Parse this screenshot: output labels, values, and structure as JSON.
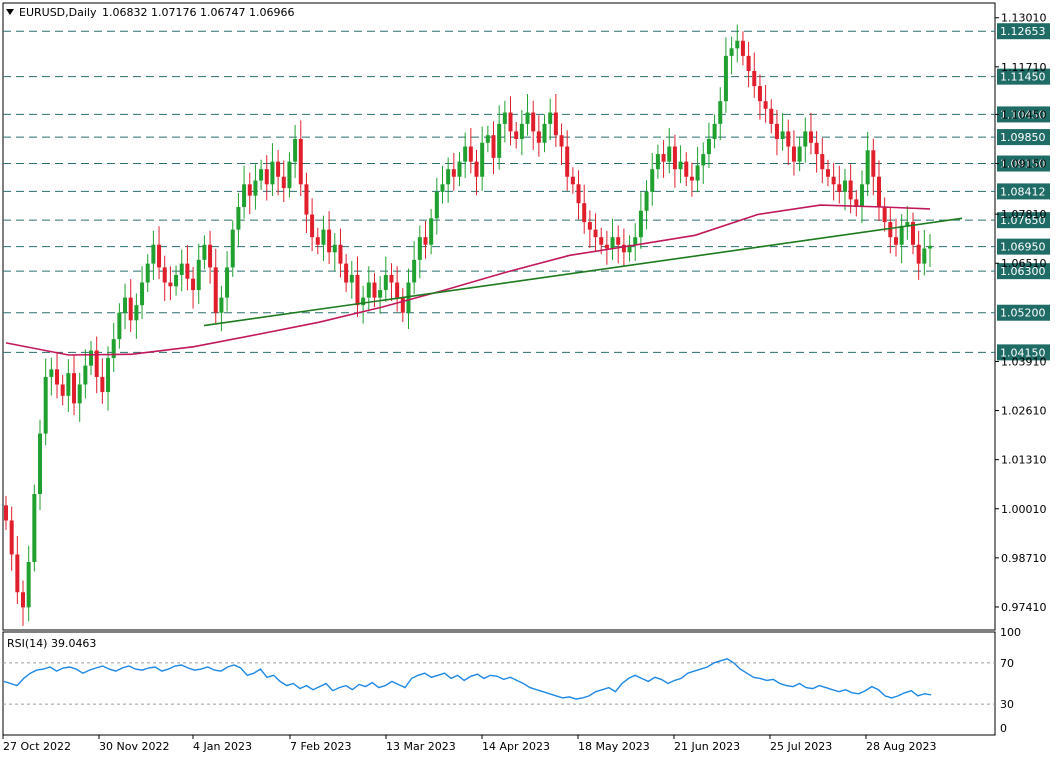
{
  "header": {
    "symbol": "EURUSD,Daily",
    "ohlc": "1.06832 1.07176 1.06747 1.06966"
  },
  "rsi_panel": {
    "label": "RSI(14) 39.0463",
    "ticks": [
      "100",
      "70",
      "30",
      "0"
    ]
  },
  "chart_data": {
    "type": "line",
    "y_axis_ticks": [
      "1.13010",
      "1.11710",
      "1.10450",
      "1.09150",
      "1.07810",
      "1.06510",
      "1.03910",
      "1.02610",
      "1.01310",
      "1.00010",
      "0.98710",
      "0.97410"
    ],
    "x_axis_ticks": [
      "27 Oct 2022",
      "30 Nov 2022",
      "4 Jan 2023",
      "7 Feb 2023",
      "13 Mar 2023",
      "14 Apr 2023",
      "18 May 2023",
      "21 Jun 2023",
      "25 Jul 2023",
      "28 Aug 2023"
    ],
    "ylim": [
      0.968,
      1.134
    ],
    "horizontal_levels": [
      {
        "value": 1.12653,
        "label": "1.12653"
      },
      {
        "value": 1.1145,
        "label": "1.11450"
      },
      {
        "value": 1.1045,
        "label": "1.10450"
      },
      {
        "value": 1.0985,
        "label": "1.09850"
      },
      {
        "value": 1.0915,
        "label": "1.09150"
      },
      {
        "value": 1.08412,
        "label": "1.08412"
      },
      {
        "value": 1.0765,
        "label": "1.07650"
      },
      {
        "value": 1.0695,
        "label": "1.06950"
      },
      {
        "value": 1.063,
        "label": "1.06300"
      },
      {
        "value": 1.052,
        "label": "1.05200"
      },
      {
        "value": 1.0415,
        "label": "1.04150"
      }
    ],
    "trendline": {
      "color": "#1e7a1e",
      "from": {
        "date": "2023-01-04",
        "value": 1.0486
      },
      "to": {
        "date": "2023-09-28",
        "value": 1.077
      }
    },
    "moving_average": {
      "color": "#c2185b",
      "points": [
        [
          0,
          1.044
        ],
        [
          20,
          1.0408
        ],
        [
          40,
          1.041
        ],
        [
          60,
          1.043
        ],
        [
          80,
          1.0462
        ],
        [
          100,
          1.0495
        ],
        [
          120,
          1.0535
        ],
        [
          140,
          1.058
        ],
        [
          160,
          1.0628
        ],
        [
          180,
          1.0672
        ],
        [
          200,
          1.0698
        ],
        [
          220,
          1.0725
        ],
        [
          240,
          1.078
        ],
        [
          260,
          1.0805
        ],
        [
          280,
          1.08
        ],
        [
          295,
          1.0795
        ]
      ]
    },
    "close_series": [
      0.997,
      0.988,
      0.978,
      0.974,
      0.986,
      1.004,
      1.02,
      1.035,
      1.037,
      1.033,
      1.03,
      1.036,
      1.028,
      1.033,
      1.038,
      1.042,
      1.035,
      1.031,
      1.04,
      1.045,
      1.052,
      1.056,
      1.05,
      1.054,
      1.06,
      1.065,
      1.07,
      1.064,
      1.06,
      1.059,
      1.062,
      1.065,
      1.061,
      1.058,
      1.066,
      1.07,
      1.064,
      1.052,
      1.056,
      1.064,
      1.074,
      1.08,
      1.086,
      1.083,
      1.087,
      1.09,
      1.086,
      1.092,
      1.088,
      1.085,
      1.092,
      1.098,
      1.086,
      1.078,
      1.072,
      1.07,
      1.074,
      1.068,
      1.07,
      1.065,
      1.06,
      1.062,
      1.054,
      1.056,
      1.06,
      1.056,
      1.058,
      1.062,
      1.06,
      1.056,
      1.052,
      1.06,
      1.066,
      1.072,
      1.07,
      1.077,
      1.084,
      1.086,
      1.09,
      1.088,
      1.092,
      1.096,
      1.092,
      1.088,
      1.097,
      1.099,
      1.093,
      1.102,
      1.105,
      1.1,
      1.098,
      1.102,
      1.105,
      1.1,
      1.097,
      1.102,
      1.105,
      1.099,
      1.096,
      1.088,
      1.086,
      1.081,
      1.076,
      1.074,
      1.072,
      1.07,
      1.069,
      1.072,
      1.07,
      1.068,
      1.07,
      1.072,
      1.079,
      1.084,
      1.09,
      1.094,
      1.092,
      1.096,
      1.09,
      1.092,
      1.088,
      1.087,
      1.091,
      1.094,
      1.098,
      1.102,
      1.108,
      1.12,
      1.122,
      1.124,
      1.12,
      1.116,
      1.112,
      1.108,
      1.106,
      1.102,
      1.098,
      1.1,
      1.096,
      1.092,
      1.096,
      1.1,
      1.097,
      1.094,
      1.09,
      1.088,
      1.086,
      1.084,
      1.087,
      1.082,
      1.08,
      1.086,
      1.095,
      1.088,
      1.08,
      1.076,
      1.072,
      1.07,
      1.075,
      1.076,
      1.07,
      1.065,
      1.069,
      1.0697
    ]
  },
  "rsi_data": {
    "series": [
      52,
      50,
      48,
      55,
      60,
      63,
      64,
      66,
      62,
      65,
      66,
      64,
      60,
      63,
      65,
      67,
      64,
      62,
      65,
      67,
      64,
      63,
      65,
      66,
      62,
      64,
      67,
      68,
      65,
      63,
      64,
      66,
      63,
      62,
      66,
      68,
      65,
      58,
      60,
      64,
      56,
      58,
      52,
      48,
      50,
      45,
      48,
      44,
      47,
      50,
      43,
      46,
      48,
      44,
      49,
      47,
      51,
      46,
      48,
      52,
      49,
      46,
      55,
      58,
      60,
      56,
      58,
      60,
      55,
      58,
      53,
      57,
      59,
      55,
      58,
      57,
      54,
      56,
      53,
      50,
      46,
      44,
      42,
      40,
      38,
      36,
      37,
      35,
      36,
      38,
      42,
      44,
      46,
      42,
      50,
      55,
      58,
      55,
      52,
      56,
      54,
      50,
      53,
      55,
      60,
      62,
      64,
      66,
      70,
      72,
      74,
      70,
      64,
      60,
      56,
      55,
      53,
      54,
      50,
      48,
      47,
      50,
      46,
      45,
      48,
      46,
      44,
      42,
      44,
      41,
      40,
      43,
      47,
      44,
      38,
      36,
      38,
      41,
      43,
      38,
      40,
      39
    ]
  }
}
